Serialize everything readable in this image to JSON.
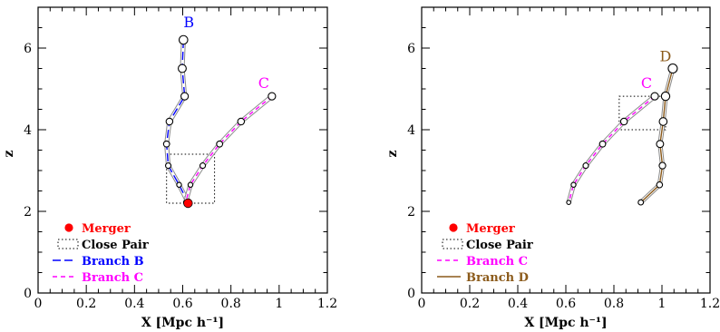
{
  "chart_data": [
    {
      "type": "line",
      "xlabel": "X [Mpc h⁻¹]",
      "ylabel": "z",
      "xlim": [
        0,
        1.2
      ],
      "ylim": [
        0,
        7
      ],
      "xticks": [
        "0",
        "0.2",
        "0.4",
        "0.6",
        "0.8",
        "1",
        "1.2"
      ],
      "yticks": [
        "0",
        "2",
        "4",
        "6"
      ],
      "series": [
        {
          "name": "Branch B",
          "label": "B",
          "color": "#0000ff",
          "dash": "long",
          "points": [
            {
              "x": 0.603,
              "z": 6.2
            },
            {
              "x": 0.598,
              "z": 5.5
            },
            {
              "x": 0.608,
              "z": 4.82
            },
            {
              "x": 0.545,
              "z": 4.2
            },
            {
              "x": 0.533,
              "z": 3.65
            },
            {
              "x": 0.54,
              "z": 3.12
            },
            {
              "x": 0.585,
              "z": 2.65
            },
            {
              "x": 0.622,
              "z": 2.22
            }
          ]
        },
        {
          "name": "Branch C",
          "label": "C",
          "color": "#ff00ff",
          "dash": "short",
          "points": [
            {
              "x": 0.97,
              "z": 4.82
            },
            {
              "x": 0.842,
              "z": 4.2
            },
            {
              "x": 0.753,
              "z": 3.65
            },
            {
              "x": 0.683,
              "z": 3.12
            },
            {
              "x": 0.632,
              "z": 2.65
            },
            {
              "x": 0.612,
              "z": 2.22
            }
          ]
        }
      ],
      "merger": {
        "x": 0.622,
        "z": 2.2
      },
      "close_pair_box": {
        "x0": 0.533,
        "x1": 0.732,
        "z0": 2.2,
        "z1": 3.4
      },
      "legend": {
        "placement": "bottom-left",
        "entries": [
          {
            "kind": "merger",
            "text": "Merger",
            "color": "#ff0000"
          },
          {
            "kind": "box",
            "text": "Close Pair",
            "color": "#000000"
          },
          {
            "kind": "line",
            "text": "Branch B",
            "color": "#0000ff",
            "dash": "long"
          },
          {
            "kind": "line",
            "text": "Branch C",
            "color": "#ff00ff",
            "dash": "short"
          }
        ]
      }
    },
    {
      "type": "line",
      "xlabel": "X [Mpc h⁻¹]",
      "ylabel": "z",
      "xlim": [
        0,
        1.2
      ],
      "ylim": [
        0,
        7
      ],
      "xticks": [
        "0",
        "0.2",
        "0.4",
        "0.6",
        "0.8",
        "1",
        "1.2"
      ],
      "yticks": [
        "0",
        "2",
        "4",
        "6"
      ],
      "series": [
        {
          "name": "Branch C",
          "label": "C",
          "color": "#ff00ff",
          "dash": "short",
          "points": [
            {
              "x": 0.97,
              "z": 4.82
            },
            {
              "x": 0.842,
              "z": 4.2
            },
            {
              "x": 0.753,
              "z": 3.65
            },
            {
              "x": 0.683,
              "z": 3.12
            },
            {
              "x": 0.632,
              "z": 2.65
            },
            {
              "x": 0.612,
              "z": 2.22
            }
          ]
        },
        {
          "name": "Branch D",
          "label": "D",
          "color": "#8b5a1a",
          "dash": "solid",
          "points": [
            {
              "x": 1.045,
              "z": 5.5
            },
            {
              "x": 1.015,
              "z": 4.82
            },
            {
              "x": 1.005,
              "z": 4.2
            },
            {
              "x": 0.992,
              "z": 3.65
            },
            {
              "x": 1.002,
              "z": 3.12
            },
            {
              "x": 0.99,
              "z": 2.65
            },
            {
              "x": 0.912,
              "z": 2.22
            }
          ]
        }
      ],
      "merger": null,
      "close_pair_box": {
        "x0": 0.822,
        "x1": 1.015,
        "z0": 4.0,
        "z1": 4.82
      },
      "legend": {
        "placement": "bottom-left",
        "entries": [
          {
            "kind": "merger",
            "text": "Merger",
            "color": "#ff0000"
          },
          {
            "kind": "box",
            "text": "Close Pair",
            "color": "#000000"
          },
          {
            "kind": "line",
            "text": "Branch C",
            "color": "#ff00ff",
            "dash": "short"
          },
          {
            "kind": "line",
            "text": "Branch D",
            "color": "#8b5a1a",
            "dash": "solid"
          }
        ]
      }
    }
  ]
}
